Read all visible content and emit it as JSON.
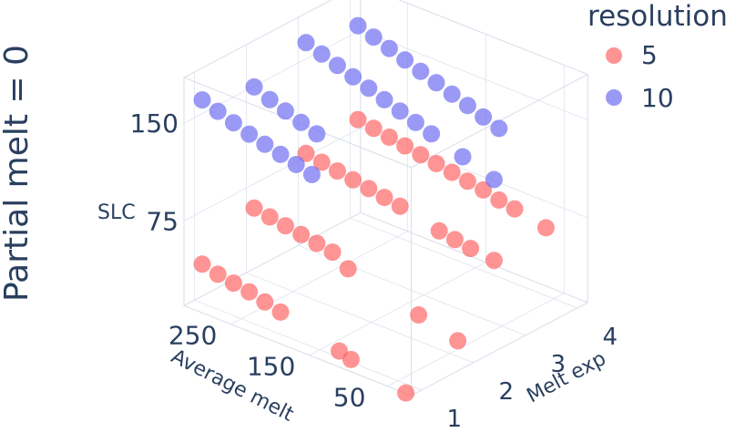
{
  "chart_data": {
    "type": "scatter3d",
    "title": "Partial melt = 0",
    "legend": {
      "title": "resolution",
      "position": "top-right",
      "items": [
        {
          "name": "5",
          "color": "#ff6666"
        },
        {
          "name": "10",
          "color": "#6f6ff2"
        }
      ]
    },
    "axes": {
      "x": {
        "label": "Melt exp",
        "ticks": [
          "1",
          "2",
          "3",
          "4"
        ],
        "range": [
          0.8,
          4.2
        ]
      },
      "y": {
        "label": "Average melt",
        "ticks": [
          "50",
          "150",
          "250"
        ],
        "range": [
          20,
          310
        ]
      },
      "z": {
        "label": "SLC",
        "ticks": [
          "75",
          "150"
        ],
        "range": [
          10,
          185
        ]
      }
    },
    "grid": true,
    "series": [
      {
        "name": "5",
        "color": "#ff6666",
        "points": [
          {
            "x": 1,
            "y": 300,
            "z": 40
          },
          {
            "x": 1,
            "y": 280,
            "z": 37
          },
          {
            "x": 1,
            "y": 260,
            "z": 35
          },
          {
            "x": 1,
            "y": 240,
            "z": 33
          },
          {
            "x": 1,
            "y": 220,
            "z": 30
          },
          {
            "x": 1,
            "y": 200,
            "z": 27
          },
          {
            "x": 1,
            "y": 125,
            "z": 15
          },
          {
            "x": 1,
            "y": 110,
            "z": 12
          },
          {
            "x": 1,
            "y": 40,
            "z": 3
          },
          {
            "x": 2,
            "y": 300,
            "z": 62
          },
          {
            "x": 2,
            "y": 280,
            "z": 60
          },
          {
            "x": 2,
            "y": 260,
            "z": 58
          },
          {
            "x": 2,
            "y": 240,
            "z": 56
          },
          {
            "x": 2,
            "y": 220,
            "z": 54
          },
          {
            "x": 2,
            "y": 200,
            "z": 52
          },
          {
            "x": 2,
            "y": 180,
            "z": 44
          },
          {
            "x": 2,
            "y": 90,
            "z": 30
          },
          {
            "x": 2,
            "y": 40,
            "z": 22
          },
          {
            "x": 3,
            "y": 300,
            "z": 83
          },
          {
            "x": 3,
            "y": 280,
            "z": 81
          },
          {
            "x": 3,
            "y": 260,
            "z": 79
          },
          {
            "x": 3,
            "y": 240,
            "z": 77
          },
          {
            "x": 3,
            "y": 220,
            "z": 75
          },
          {
            "x": 3,
            "y": 200,
            "z": 73
          },
          {
            "x": 3,
            "y": 180,
            "z": 71
          },
          {
            "x": 3,
            "y": 130,
            "z": 64
          },
          {
            "x": 3,
            "y": 110,
            "z": 62
          },
          {
            "x": 3,
            "y": 90,
            "z": 60
          },
          {
            "x": 3,
            "y": 60,
            "z": 58
          },
          {
            "x": 4,
            "y": 300,
            "z": 88
          },
          {
            "x": 4,
            "y": 280,
            "z": 86
          },
          {
            "x": 4,
            "y": 260,
            "z": 84
          },
          {
            "x": 4,
            "y": 240,
            "z": 82
          },
          {
            "x": 4,
            "y": 220,
            "z": 80
          },
          {
            "x": 4,
            "y": 200,
            "z": 78
          },
          {
            "x": 4,
            "y": 180,
            "z": 76
          },
          {
            "x": 4,
            "y": 160,
            "z": 74
          },
          {
            "x": 4,
            "y": 140,
            "z": 72
          },
          {
            "x": 4,
            "y": 120,
            "z": 69
          },
          {
            "x": 4,
            "y": 100,
            "z": 67
          },
          {
            "x": 4,
            "y": 60,
            "z": 62
          }
        ]
      },
      {
        "name": "10",
        "color": "#6f6ff2",
        "points": [
          {
            "x": 1,
            "y": 300,
            "z": 166
          },
          {
            "x": 1,
            "y": 280,
            "z": 162
          },
          {
            "x": 1,
            "y": 260,
            "z": 158
          },
          {
            "x": 1,
            "y": 240,
            "z": 154
          },
          {
            "x": 1,
            "y": 220,
            "z": 151
          },
          {
            "x": 1,
            "y": 200,
            "z": 148
          },
          {
            "x": 1,
            "y": 180,
            "z": 145
          },
          {
            "x": 1,
            "y": 160,
            "z": 142
          },
          {
            "x": 2,
            "y": 300,
            "z": 155
          },
          {
            "x": 2,
            "y": 280,
            "z": 150
          },
          {
            "x": 2,
            "y": 260,
            "z": 146
          },
          {
            "x": 2,
            "y": 240,
            "z": 142
          },
          {
            "x": 2,
            "y": 220,
            "z": 138
          },
          {
            "x": 3,
            "y": 300,
            "z": 168
          },
          {
            "x": 3,
            "y": 280,
            "z": 164
          },
          {
            "x": 3,
            "y": 260,
            "z": 160
          },
          {
            "x": 3,
            "y": 240,
            "z": 156
          },
          {
            "x": 3,
            "y": 220,
            "z": 152
          },
          {
            "x": 3,
            "y": 200,
            "z": 148
          },
          {
            "x": 3,
            "y": 180,
            "z": 144
          },
          {
            "x": 3,
            "y": 160,
            "z": 140
          },
          {
            "x": 3,
            "y": 140,
            "z": 136
          },
          {
            "x": 3,
            "y": 100,
            "z": 128
          },
          {
            "x": 3,
            "y": 60,
            "z": 120
          },
          {
            "x": 4,
            "y": 300,
            "z": 160
          },
          {
            "x": 4,
            "y": 280,
            "z": 156
          },
          {
            "x": 4,
            "y": 260,
            "z": 152
          },
          {
            "x": 4,
            "y": 240,
            "z": 148
          },
          {
            "x": 4,
            "y": 220,
            "z": 144
          },
          {
            "x": 4,
            "y": 200,
            "z": 140
          },
          {
            "x": 4,
            "y": 180,
            "z": 136
          },
          {
            "x": 4,
            "y": 160,
            "z": 132
          },
          {
            "x": 4,
            "y": 140,
            "z": 128
          },
          {
            "x": 4,
            "y": 120,
            "z": 124
          }
        ]
      }
    ]
  }
}
